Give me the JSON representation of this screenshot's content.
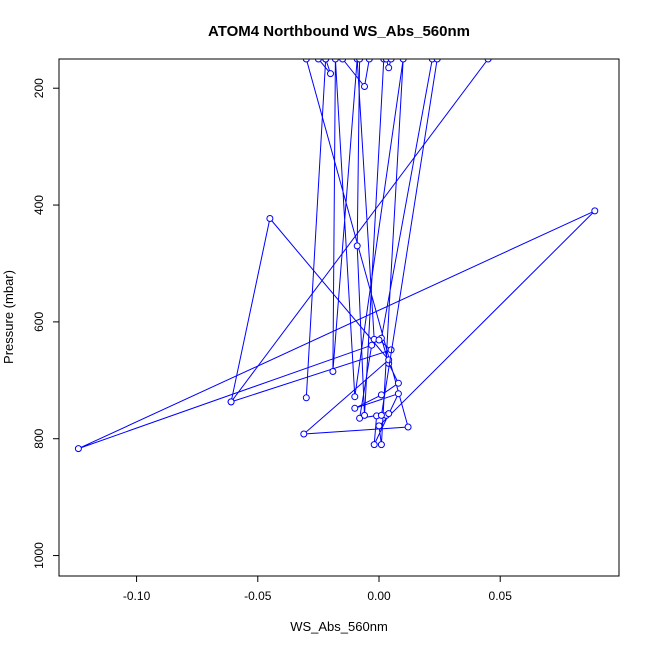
{
  "chart_data": {
    "type": "line",
    "title": "ATOM4 Northbound WS_Abs_560nm",
    "xlabel": "WS_Abs_560nm",
    "ylabel": "Pressure (mbar)",
    "xlim": [
      -0.132,
      0.099
    ],
    "ylim": [
      1035,
      150
    ],
    "y_reversed": true,
    "x_ticks": [
      -0.1,
      -0.05,
      0.0,
      0.05
    ],
    "x_tick_labels": [
      "-0.10",
      "-0.05",
      "0.00",
      "0.05"
    ],
    "y_ticks": [
      200,
      400,
      600,
      800,
      1000
    ],
    "y_tick_labels": [
      "200",
      "400",
      "600",
      "800",
      "1000"
    ],
    "grid": false,
    "legend": "none",
    "series": [
      {
        "color": "#0000ff",
        "marker": "open-circle",
        "points": [
          [
            0.022,
            150
          ],
          [
            0.001,
            628
          ],
          [
            0.004,
            671
          ],
          [
            0.008,
            705
          ],
          [
            0.001,
            725
          ],
          [
            -0.01,
            748
          ],
          [
            0.008,
            723
          ],
          [
            -0.002,
            810
          ],
          [
            -0.001,
            761
          ],
          [
            0.003,
            760
          ],
          [
            0.004,
            757
          ],
          [
            -0.008,
            765
          ],
          [
            -0.003,
            640
          ],
          [
            -0.124,
            817
          ],
          [
            0.089,
            410
          ],
          [
            0.0,
            778
          ],
          [
            0.001,
            810
          ],
          [
            0.01,
            150
          ],
          [
            -0.01,
            728
          ],
          [
            -0.018,
            150
          ],
          [
            -0.019,
            685
          ],
          [
            -0.009,
            150
          ],
          [
            -0.002,
            630
          ],
          [
            0.0,
            631
          ],
          [
            0.005,
            648
          ],
          [
            -0.061,
            737
          ],
          [
            -0.045,
            423
          ],
          [
            0.004,
            665
          ],
          [
            -0.031,
            792
          ],
          [
            0.012,
            780
          ],
          [
            -0.03,
            150
          ]
        ]
      },
      {
        "color": "#0000ff",
        "marker": "open-circle",
        "points": [
          [
            -0.03,
            730
          ],
          [
            -0.022,
            150
          ]
        ]
      },
      {
        "color": "#0000ff",
        "marker": "open-circle",
        "points": [
          [
            -0.008,
            150
          ],
          [
            -0.009,
            470
          ],
          [
            -0.006,
            760
          ],
          [
            0.002,
            150
          ]
        ]
      },
      {
        "color": "#0000ff",
        "marker": "open-circle",
        "points": [
          [
            -0.061,
            737
          ],
          [
            0.045,
            150
          ]
        ]
      },
      {
        "color": "#0000ff",
        "marker": "open-circle",
        "points": [
          [
            -0.022,
            150
          ],
          [
            -0.02,
            175
          ],
          [
            -0.025,
            150
          ]
        ]
      },
      {
        "color": "#0000ff",
        "marker": "open-circle",
        "points": [
          [
            -0.015,
            150
          ],
          [
            -0.006,
            197
          ],
          [
            -0.004,
            150
          ]
        ]
      },
      {
        "color": "#0000ff",
        "marker": "open-circle",
        "points": [
          [
            0.003,
            150
          ],
          [
            0.004,
            165
          ],
          [
            0.005,
            150
          ]
        ]
      },
      {
        "color": "#0000ff",
        "marker": "open-circle",
        "points": [
          [
            0.001,
            760
          ],
          [
            0.024,
            150
          ]
        ]
      }
    ]
  }
}
